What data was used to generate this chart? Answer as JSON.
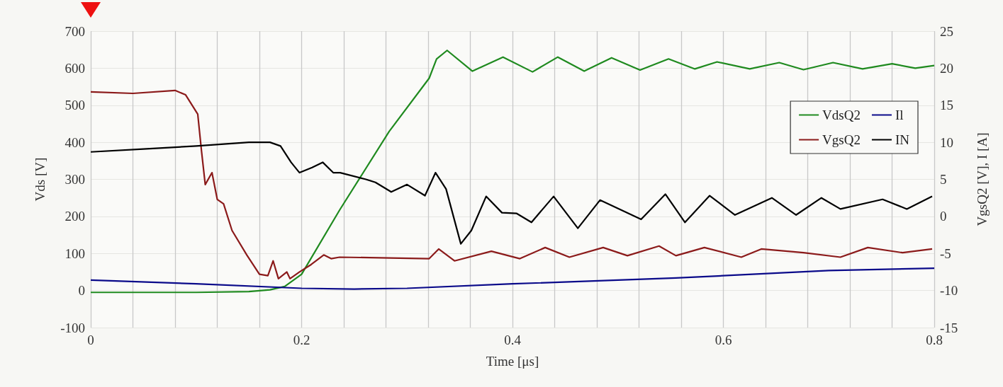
{
  "chart_data": {
    "type": "line",
    "xlabel": "Time [μs]",
    "ylabel": "Vds [V]",
    "y2label": "VgsQ2 [V], I [A]",
    "xlim": [
      0,
      0.8
    ],
    "xticks": [
      0,
      {
        "value": 0.04,
        "label": null
      },
      {
        "value": 0.08,
        "label": null
      },
      {
        "value": 0.12,
        "label": null
      },
      {
        "value": 0.16,
        "label": null
      },
      {
        "value": 0.2,
        "label": "0.2"
      },
      {
        "value": 0.24,
        "label": null
      },
      {
        "value": 0.28,
        "label": null
      },
      {
        "value": 0.32,
        "label": null
      },
      {
        "value": 0.36,
        "label": null
      },
      {
        "value": 0.4,
        "label": "0.4"
      },
      {
        "value": 0.44,
        "label": null
      },
      {
        "value": 0.48,
        "label": null
      },
      {
        "value": 0.52,
        "label": null
      },
      {
        "value": 0.56,
        "label": null
      },
      {
        "value": 0.6,
        "label": "0.6"
      },
      {
        "value": 0.64,
        "label": null
      },
      {
        "value": 0.68,
        "label": null
      },
      {
        "value": 0.72,
        "label": null
      },
      {
        "value": 0.76,
        "label": null
      },
      {
        "value": 0.8,
        "label": "0.8"
      }
    ],
    "ylim": [
      -100,
      700
    ],
    "yticks": [
      -100,
      0,
      100,
      200,
      300,
      400,
      500,
      600,
      700
    ],
    "y2lim": [
      -15,
      25
    ],
    "y2ticks": [
      -15,
      -10,
      -5,
      0,
      5,
      10,
      15,
      20,
      25
    ],
    "grid": true,
    "legend": "right",
    "marker": "none",
    "line_style": "solid",
    "series": [
      {
        "name": "VdsQ2",
        "color": "#1f8a1f",
        "x": [
          0,
          0.05,
          0.1,
          0.15,
          0.17,
          0.184,
          0.2,
          0.236,
          0.283,
          0.321,
          0.328,
          0.338,
          0.362,
          0.391,
          0.419,
          0.443,
          0.468,
          0.494,
          0.521,
          0.548,
          0.573,
          0.594,
          0.625,
          0.653,
          0.676,
          0.704,
          0.732,
          0.76,
          0.782,
          0.8
        ],
        "values": [
          -5,
          -5,
          -5,
          -3,
          2,
          11,
          44,
          217,
          429,
          573,
          625,
          648,
          592,
          630,
          590,
          630,
          592,
          628,
          595,
          625,
          598,
          617,
          598,
          615,
          596,
          615,
          598,
          612,
          600,
          607
        ]
      },
      {
        "name": "Il",
        "color": "#0a0a8a",
        "axis": "y2",
        "x": [
          0,
          0.1,
          0.2,
          0.25,
          0.3,
          0.4,
          0.5,
          0.555,
          0.6,
          0.7,
          0.8
        ],
        "values": [
          -8.6,
          -9.1,
          -9.7,
          -9.8,
          -9.7,
          -9.1,
          -8.6,
          -8.3,
          -8.0,
          -7.3,
          -7.0
        ]
      },
      {
        "name": "VgsQ2",
        "color": "#8b1a1a",
        "axis": "y2",
        "x": [
          0,
          0.04,
          0.08,
          0.09,
          0.1015,
          0.105,
          0.1086,
          0.115,
          0.12,
          0.126,
          0.134,
          0.148,
          0.16,
          0.168,
          0.173,
          0.178,
          0.186,
          0.189,
          0.198,
          0.209,
          0.221,
          0.228,
          0.236,
          0.321,
          0.33,
          0.345,
          0.38,
          0.407,
          0.431,
          0.454,
          0.486,
          0.509,
          0.539,
          0.555,
          0.582,
          0.617,
          0.636,
          0.676,
          0.711,
          0.737,
          0.77,
          0.798
        ],
        "values": [
          16.8,
          16.6,
          17.0,
          16.4,
          13.8,
          8.9,
          4.3,
          5.9,
          2.3,
          1.7,
          -1.9,
          -5.2,
          -7.8,
          -8.0,
          -6.0,
          -8.4,
          -7.5,
          -8.4,
          -7.5,
          -6.5,
          -5.2,
          -5.7,
          -5.5,
          -5.7,
          -4.4,
          -6.0,
          -4.7,
          -5.7,
          -4.2,
          -5.5,
          -4.2,
          -5.3,
          -4.0,
          -5.3,
          -4.2,
          -5.5,
          -4.4,
          -4.9,
          -5.5,
          -4.2,
          -4.9,
          -4.4
        ]
      },
      {
        "name": "IN",
        "color": "#000000",
        "axis": "y2",
        "x": [
          0,
          0.05,
          0.1,
          0.15,
          0.17,
          0.18,
          0.19,
          0.198,
          0.21,
          0.22,
          0.23,
          0.2366,
          0.261,
          0.27,
          0.285,
          0.3,
          0.317,
          0.327,
          0.337,
          0.351,
          0.361,
          0.375,
          0.39,
          0.404,
          0.418,
          0.439,
          0.462,
          0.483,
          0.522,
          0.545,
          0.5636,
          0.587,
          0.611,
          0.646,
          0.669,
          0.693,
          0.711,
          0.751,
          0.774,
          0.798
        ],
        "values": [
          8.7,
          9.1,
          9.5,
          10.0,
          10.0,
          9.5,
          7.3,
          5.9,
          6.6,
          7.3,
          5.9,
          5.9,
          5.0,
          4.6,
          3.3,
          4.3,
          2.8,
          5.9,
          3.7,
          -3.7,
          -1.9,
          2.7,
          0.5,
          0.4,
          -0.8,
          2.7,
          -1.6,
          2.2,
          -0.4,
          3.0,
          -0.8,
          2.8,
          0.2,
          2.5,
          0.2,
          2.5,
          1.0,
          2.3,
          1.0,
          2.7
        ]
      }
    ]
  }
}
